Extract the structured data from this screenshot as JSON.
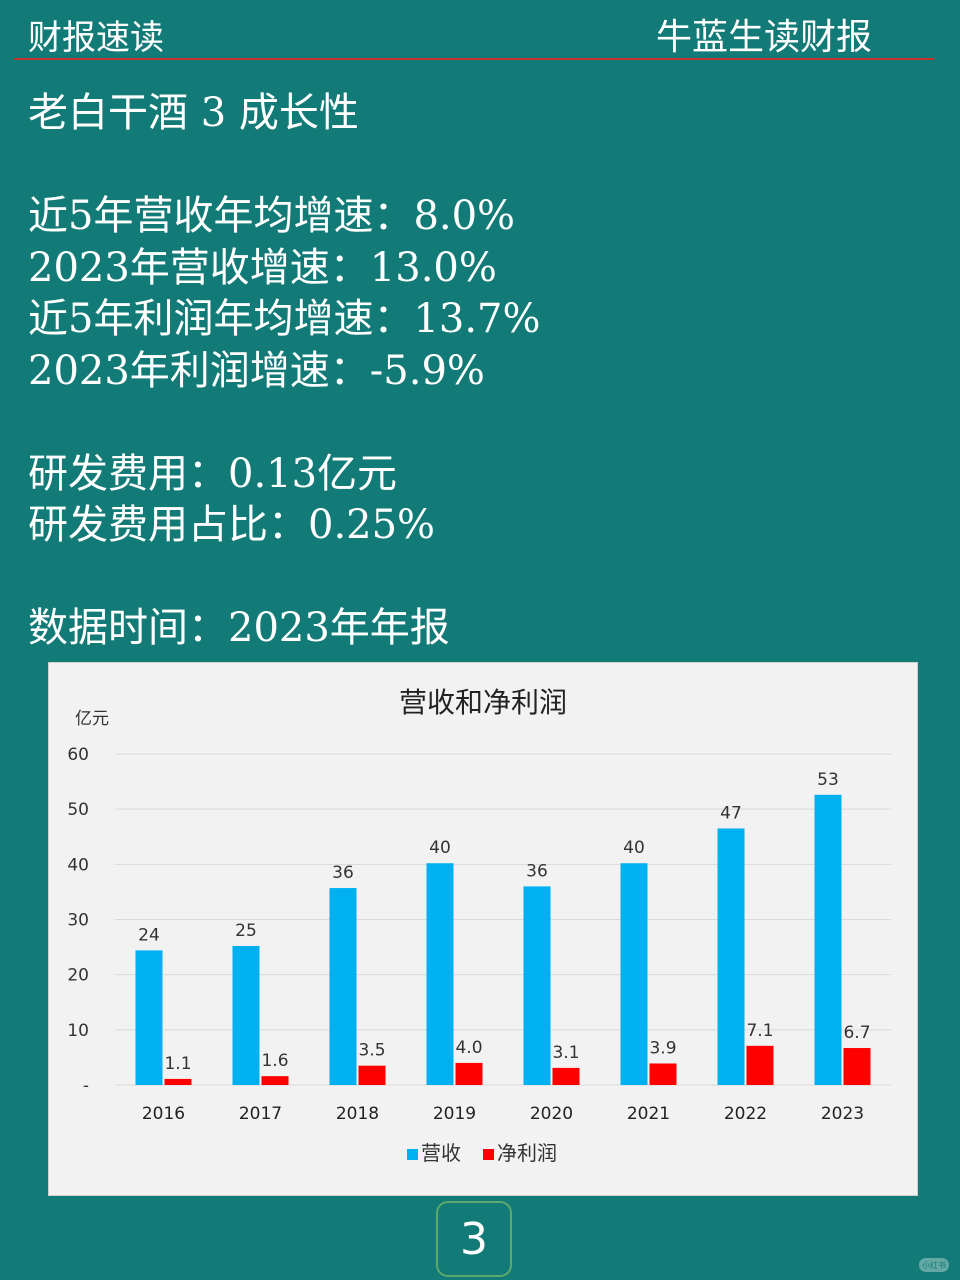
{
  "header": {
    "left": "财报速读",
    "right": "牛蓝生读财报"
  },
  "lines": [
    "老白干酒 3 成长性",
    "",
    "近5年营收年均增速：8.0%",
    "2023年营收增速：13.0%",
    "近5年利润年均增速：13.7%",
    "2023年利润增速：-5.9%",
    "",
    "研发费用：0.13亿元",
    "研发费用占比：0.25%",
    "",
    "数据时间：2023年年报"
  ],
  "chart_data": {
    "type": "bar",
    "title": "营收和净利润",
    "ylabel": "亿元",
    "ylim": [
      0,
      60
    ],
    "yticks": [
      {
        "value": 0,
        "label": "-"
      },
      {
        "value": 10,
        "label": "10"
      },
      {
        "value": 20,
        "label": "20"
      },
      {
        "value": 30,
        "label": "30"
      },
      {
        "value": 40,
        "label": "40"
      },
      {
        "value": 50,
        "label": "50"
      },
      {
        "value": 60,
        "label": "60"
      }
    ],
    "grid": true,
    "legend_position": "bottom",
    "categories": [
      "2016",
      "2017",
      "2018",
      "2019",
      "2020",
      "2021",
      "2022",
      "2023"
    ],
    "series": [
      {
        "name": "营收",
        "color": "#00b0f0",
        "values": [
          24.4,
          25.2,
          35.7,
          40.2,
          36.0,
          40.2,
          46.5,
          52.6
        ],
        "labels": [
          "24",
          "25",
          "36",
          "40",
          "36",
          "40",
          "47",
          "53"
        ]
      },
      {
        "name": "净利润",
        "color": "#ff0000",
        "values": [
          1.1,
          1.6,
          3.5,
          4.0,
          3.1,
          3.9,
          7.1,
          6.7
        ],
        "labels": [
          "1.1",
          "1.6",
          "3.5",
          "4.0",
          "3.1",
          "3.9",
          "7.1",
          "6.7"
        ]
      }
    ]
  },
  "page_number": "3",
  "watermark": "小红书"
}
